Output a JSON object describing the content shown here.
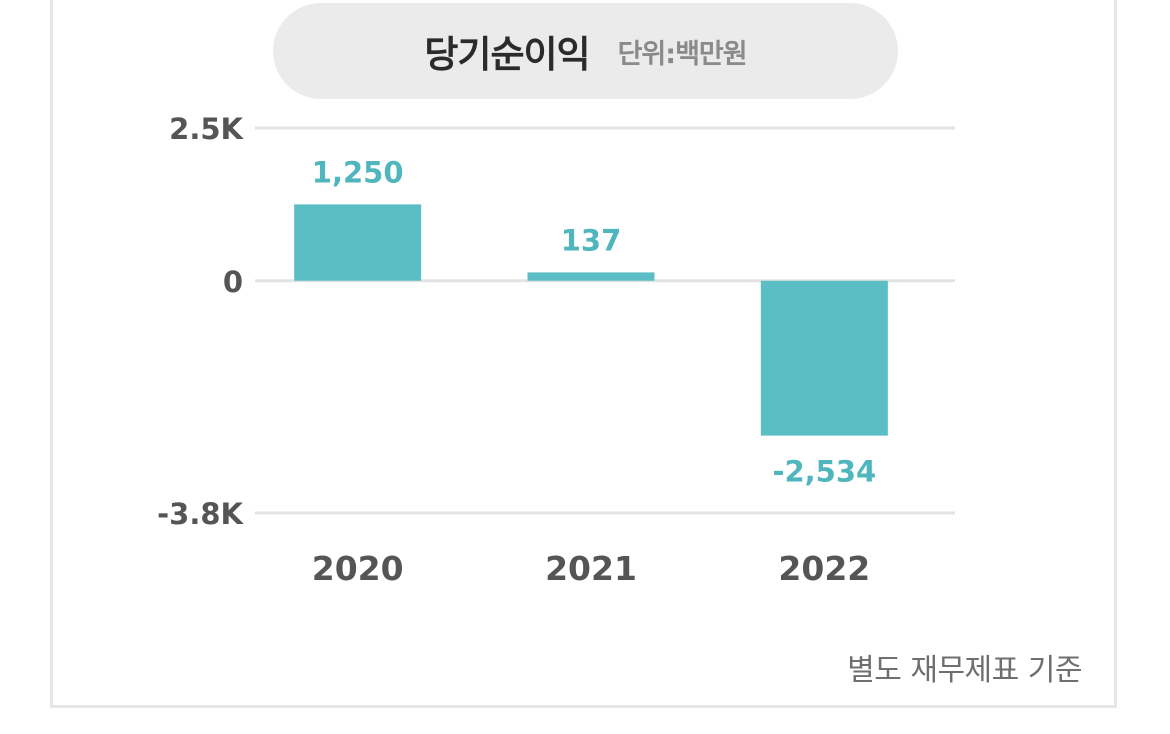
{
  "header": {
    "title": "당기순이익",
    "unit": "단위:백만원"
  },
  "footnote": "별도 재무제표 기준",
  "colors": {
    "bar": "#5bbec4",
    "value_label": "#4fb6bd",
    "axis_label": "#555555",
    "grid": "#e3e3e3"
  },
  "chart_data": {
    "type": "bar",
    "categories": [
      "2020",
      "2021",
      "2022"
    ],
    "values": [
      1250,
      137,
      -2534
    ],
    "value_labels": [
      "1,250",
      "137",
      "-2,534"
    ],
    "ylim": [
      -3800,
      2500
    ],
    "yticks": [
      2500,
      0,
      -3800
    ],
    "ytick_labels": [
      "2.5K",
      "0",
      "-3.8K"
    ],
    "grid": true,
    "legend": "none"
  }
}
